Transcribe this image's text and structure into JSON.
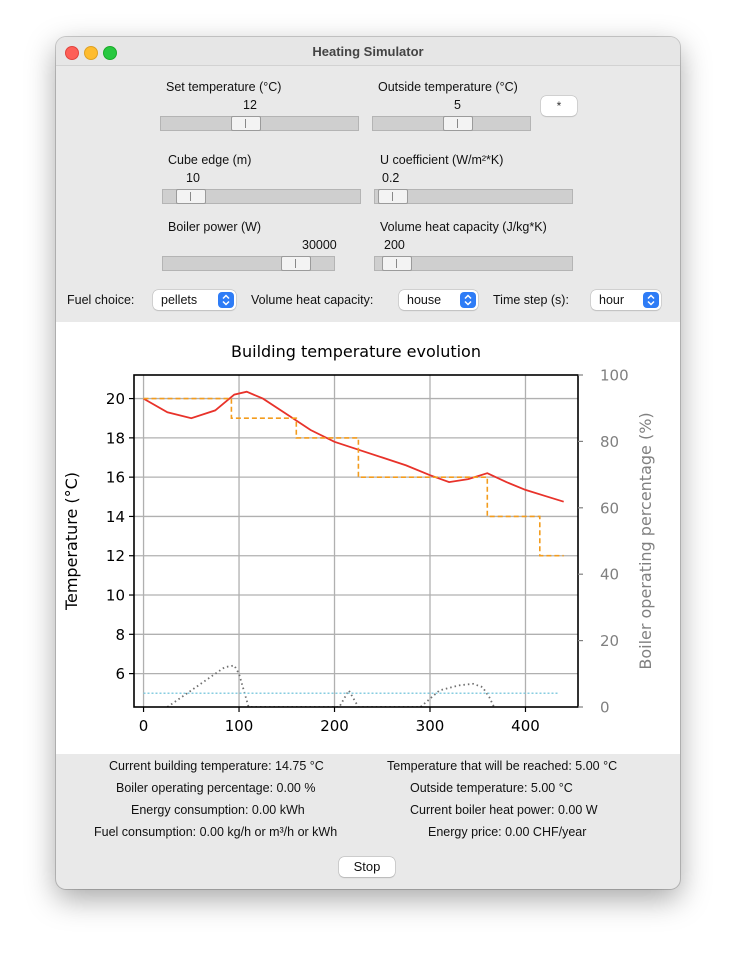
{
  "window": {
    "title": "Heating Simulator"
  },
  "controls": {
    "set_temperature": {
      "label": "Set temperature (°C)",
      "value": "12",
      "level": 0.42
    },
    "outside_temperature": {
      "label": "Outside temperature (°C)",
      "value": "5",
      "level": 0.55
    },
    "snow_button": "*",
    "cube_edge": {
      "label": "Cube edge (m)",
      "value": "10",
      "level": 0.08
    },
    "u_coefficient": {
      "label": "U coefficient (W/m²*K)",
      "value": "0.2",
      "level": 0.02
    },
    "boiler_power": {
      "label": "Boiler power (W)",
      "value": "30000",
      "level": 0.84
    },
    "volume_heat_capacity_slider": {
      "label": "Volume heat capacity (J/kg*K)",
      "value": "200",
      "level": 0.04
    }
  },
  "selects": {
    "fuel": {
      "label": "Fuel choice:",
      "value": "pellets"
    },
    "volume_heat_capacity": {
      "label": "Volume heat capacity:",
      "value": "house"
    },
    "time_step": {
      "label": "Time step (s):",
      "value": "hour"
    }
  },
  "chart_data": {
    "type": "line",
    "title": "Building temperature evolution",
    "xlabel": "",
    "ylabel": "Temperature (°C)",
    "y2label": "Boiler operating percentage (%)",
    "xlim": [
      -10,
      455
    ],
    "ylim": [
      4.3,
      21.2
    ],
    "y2lim": [
      0,
      100
    ],
    "xticks": [
      0,
      100,
      200,
      300,
      400
    ],
    "yticks": [
      6,
      8,
      10,
      12,
      14,
      16,
      18,
      20
    ],
    "y2ticks": [
      0,
      20,
      40,
      60,
      80,
      100
    ],
    "grid": true,
    "colors": {
      "building": "#e8322a",
      "target": "#f39c1d",
      "boiler": "#707070",
      "outside": "#87cde0",
      "right_axis": "#808080"
    },
    "series": [
      {
        "style": "solid",
        "axis": "left",
        "x": [
          0,
          25,
          50,
          75,
          95,
          108,
          125,
          150,
          175,
          200,
          225,
          250,
          275,
          300,
          320,
          340,
          360,
          380,
          400,
          420,
          440
        ],
        "y": [
          20.0,
          19.3,
          19.0,
          19.4,
          20.2,
          20.35,
          20.0,
          19.2,
          18.4,
          17.8,
          17.4,
          17.0,
          16.6,
          16.1,
          15.75,
          15.9,
          16.2,
          15.75,
          15.35,
          15.05,
          14.75
        ]
      },
      {
        "style": "dashed",
        "axis": "left",
        "x": [
          0,
          92,
          92,
          160,
          160,
          225,
          225,
          360,
          360,
          415,
          415,
          440
        ],
        "y": [
          20.0,
          20.0,
          19.0,
          19.0,
          18.0,
          18.0,
          16.0,
          16.0,
          14.0,
          14.0,
          12.0,
          12.0
        ]
      },
      {
        "style": "dotted",
        "axis": "right",
        "x": [
          25,
          50,
          70,
          85,
          95,
          100,
          105,
          110,
          205,
          215,
          225,
          290,
          310,
          330,
          345,
          355,
          362,
          367
        ],
        "y": [
          0,
          5,
          9,
          12,
          12.5,
          10,
          5,
          0,
          0,
          5,
          0,
          0,
          5,
          6.5,
          7,
          6,
          3,
          0
        ]
      },
      {
        "style": "dotted",
        "axis": "left",
        "x": [
          0,
          435
        ],
        "y": [
          5.0,
          5.0
        ]
      }
    ]
  },
  "status": {
    "current_temp": "Current building temperature: 14.75 °C",
    "boiler_pct": "Boiler operating percentage: 0.00 %",
    "energy": "Energy consumption: 0.00 kWh",
    "fuel": "Fuel consumption: 0.00 kg/h or m³/h or kWh",
    "target_temp": "Temperature that will be reached: 5.00 °C",
    "outside_temp": "Outside temperature: 5.00 °C",
    "boiler_power": "Current boiler heat power: 0.00 W",
    "price": "Energy price: 0.00 CHF/year"
  },
  "stop_button": "Stop"
}
